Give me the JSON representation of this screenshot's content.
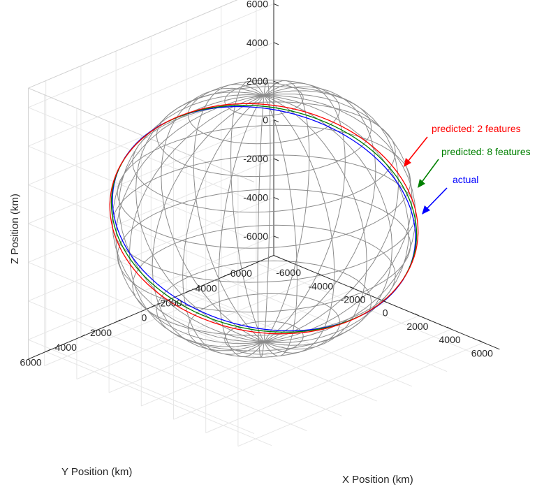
{
  "chart_data": {
    "type": "line",
    "subtype": "3d-orbit",
    "title": "",
    "xlabel": "X Position (km)",
    "ylabel": "Y Position (km)",
    "zlabel": "Z Position (km)",
    "xlim": [
      -6000,
      6000
    ],
    "ylim": [
      -6000,
      6000
    ],
    "zlim": [
      -6000,
      6000
    ],
    "x_ticks": [
      "-6000",
      "-4000",
      "-2000",
      "0",
      "2000",
      "4000",
      "6000"
    ],
    "y_ticks": [
      "-6000",
      "-4000",
      "-2000",
      "0",
      "2000",
      "4000",
      "6000"
    ],
    "z_ticks": [
      "-6000",
      "-4000",
      "-2000",
      "0",
      "2000",
      "4000",
      "6000"
    ],
    "grid": true,
    "sphere": {
      "radius_km": 6371,
      "color": "#8c8c8c"
    },
    "series": [
      {
        "color": "#0000ff",
        "orbit_radius_km": 6600,
        "inclination_deg": 78
      },
      {
        "color": "#007f00",
        "orbit_radius_km": 6600,
        "inclination_deg": 79
      },
      {
        "color": "#ff0000",
        "orbit_radius_km": 6620,
        "inclination_deg": 80
      }
    ],
    "annotations": [
      {
        "text": "predicted: 2 features",
        "color": "#ff0000"
      },
      {
        "text": "predicted: 8 features",
        "color": "#008000"
      },
      {
        "text": "actual",
        "color": "#0000ff"
      }
    ]
  }
}
